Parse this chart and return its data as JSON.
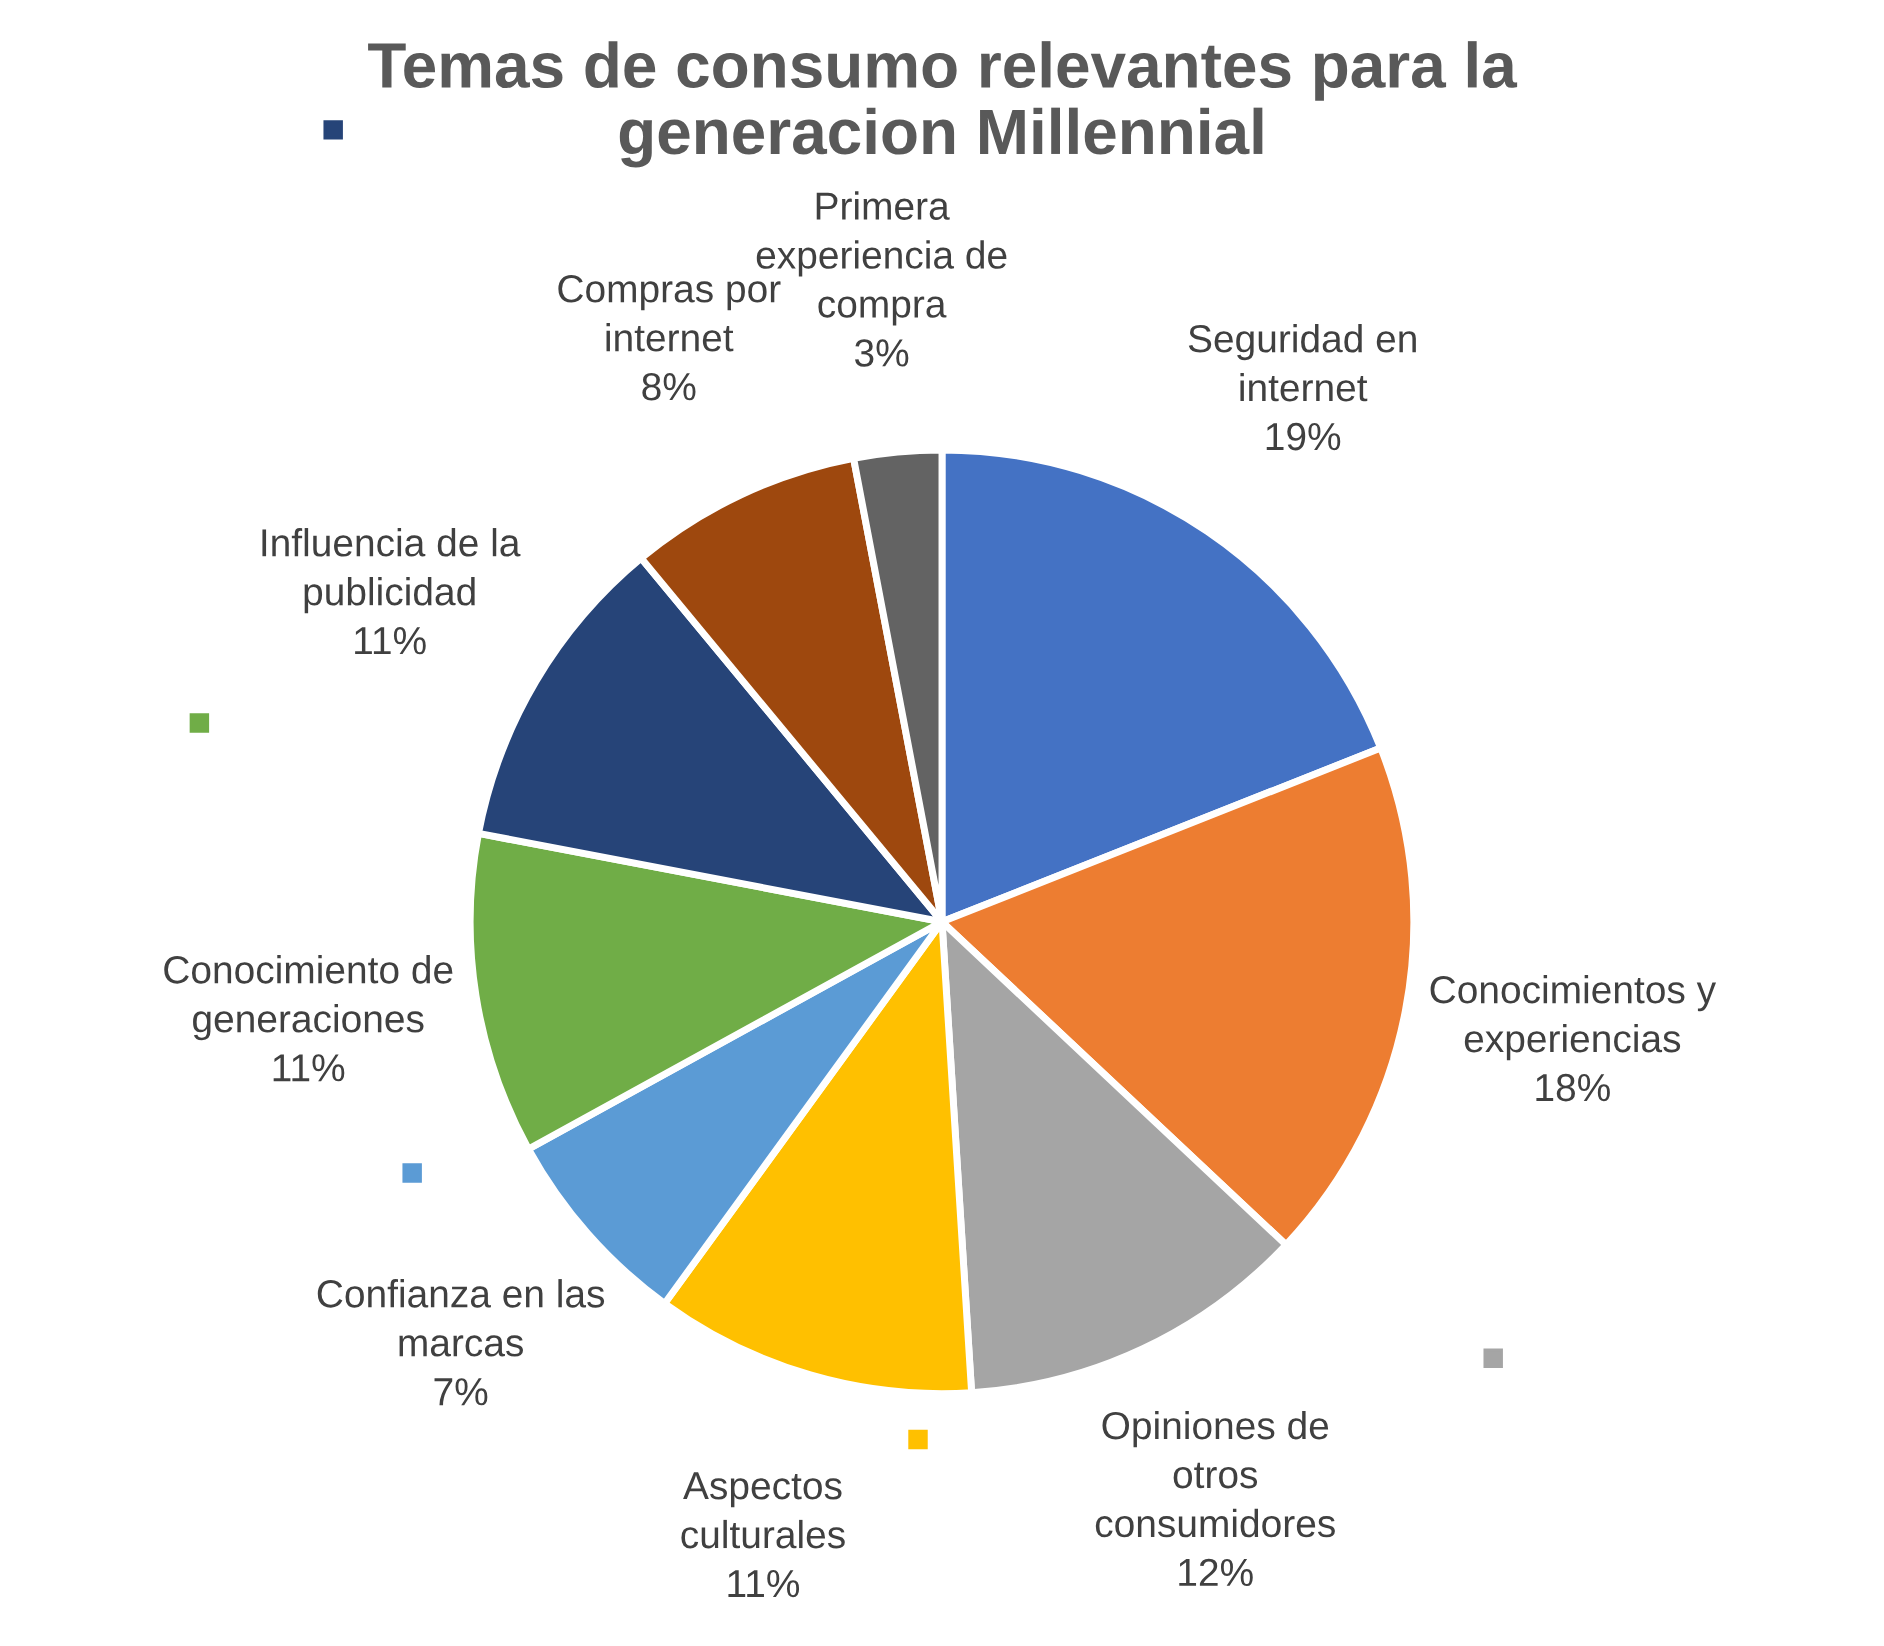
{
  "chart_data": {
    "type": "pie",
    "title": "Temas de consumo relevantes para la\ngeneracion Millennial",
    "categories": [
      "Seguridad en\ninternet",
      "Conocimientos y\nexperiencias",
      "Opiniones de\notros\nconsumidores",
      "Aspectos\nculturales",
      "Confianza en las\nmarcas",
      "Conocimiento de\ngeneraciones",
      "Influencia de la\npublicidad",
      "Compras por\ninternet",
      "Primera\nexperiencia de\ncompra"
    ],
    "values": [
      19,
      18,
      12,
      11,
      7,
      11,
      11,
      8,
      3
    ],
    "value_labels": [
      "19%",
      "18%",
      "12%",
      "11%",
      "7%",
      "11%",
      "11%",
      "8%",
      "3%"
    ],
    "colors": [
      "#4472c4",
      "#ed7d31",
      "#a5a5a5",
      "#ffc000",
      "#5b9bd5",
      "#70ad47",
      "#264478",
      "#9e480e",
      "#636363"
    ]
  }
}
